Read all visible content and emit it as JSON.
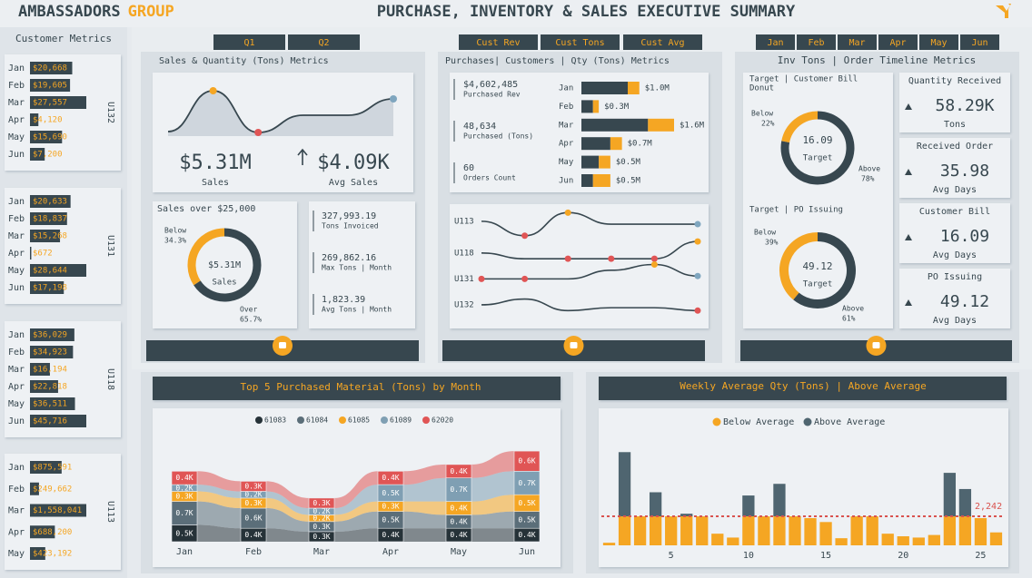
{
  "header": {
    "brand": "AMBASSADORS",
    "brand_accent": "GROUP",
    "title": "PURCHASE, INVENTORY & SALES EXECUTIVE SUMMARY"
  },
  "tabs": {
    "quarters": [
      "Q1",
      "Q2"
    ],
    "customers": [
      "Cust Rev",
      "Cust Tons",
      "Cust Avg"
    ],
    "months": [
      "Jan",
      "Feb",
      "Mar",
      "Apr",
      "May",
      "Jun"
    ]
  },
  "sidebar": {
    "title": "Customer Metrics",
    "groups": [
      {
        "name": "U132",
        "categories": [
          "Jan",
          "Feb",
          "Mar",
          "Apr",
          "May",
          "Jun"
        ],
        "values": [
          20668,
          19605,
          27557,
          4120,
          15690,
          7200
        ],
        "value_labels": [
          "$20,668",
          "$19,605",
          "$27,557",
          "$4,120",
          "$15,690",
          "$7,200"
        ]
      },
      {
        "name": "U131",
        "categories": [
          "Jan",
          "Feb",
          "Mar",
          "Apr",
          "May",
          "Jun"
        ],
        "values": [
          20633,
          18837,
          15268,
          672,
          28644,
          17198
        ],
        "value_labels": [
          "$20,633",
          "$18,837",
          "$15,268",
          "$672",
          "$28,644",
          "$17,198"
        ]
      },
      {
        "name": "U118",
        "categories": [
          "Jan",
          "Feb",
          "Mar",
          "Apr",
          "May",
          "Jun"
        ],
        "values": [
          36029,
          34923,
          16194,
          22818,
          36511,
          45716
        ],
        "value_labels": [
          "$36,029",
          "$34,923",
          "$16,194",
          "$22,818",
          "$36,511",
          "$45,716"
        ]
      },
      {
        "name": "U113",
        "categories": [
          "Jan",
          "Feb",
          "Mar",
          "Apr",
          "May"
        ],
        "values": [
          875591,
          249662,
          1558041,
          688200,
          423192
        ],
        "value_labels": [
          "$875,591",
          "$249,662",
          "$1,558,041",
          "$688,200",
          "$423,192"
        ]
      }
    ]
  },
  "sales_panel": {
    "title": "Sales & Quantity (Tons)  Metrics",
    "trend": {
      "type": "area",
      "values": [
        0.1,
        1.0,
        0.08,
        0.46,
        0.46,
        0.82
      ],
      "ylim": [
        0,
        1
      ],
      "marker_colors": [
        null,
        "#f5a623",
        "#e05555",
        null,
        null,
        "#7fa6bf"
      ]
    },
    "kpis": [
      {
        "value": "$5.31M",
        "label": "Sales"
      },
      {
        "value": "$4.09K",
        "label": "Avg Sales"
      }
    ],
    "donut": {
      "type": "donut",
      "title": "Sales over $25,000",
      "center_value": "$5.31M",
      "center_label": "Sales",
      "categories": [
        "Below",
        "Over"
      ],
      "values": [
        34.3,
        65.7
      ],
      "value_labels": [
        "34.3%",
        "65.7%"
      ],
      "colors": [
        "#f5a623",
        "#37474f"
      ]
    },
    "metrics": [
      {
        "value": "327,993.19",
        "label": "Tons Invoiced"
      },
      {
        "value": "269,862.16",
        "label": "Max Tons | Month"
      },
      {
        "value": "1,823.39",
        "label": "Avg Tons | Month"
      }
    ]
  },
  "purchases_panel": {
    "title": "Purchases| Customers | Qty (Tons)  Metrics",
    "stats": [
      {
        "value": "$4,602,485",
        "label": "Purchased Rev"
      },
      {
        "value": "48,634",
        "label": "Purchased (Tons)"
      },
      {
        "value": "60",
        "label": "Orders Count"
      }
    ],
    "bars": {
      "type": "bar",
      "categories": [
        "Jan",
        "Feb",
        "Mar",
        "Apr",
        "May",
        "Jun"
      ],
      "series": [
        {
          "color": "#37474f",
          "values": [
            0.8,
            0.2,
            1.15,
            0.5,
            0.3,
            0.2
          ]
        },
        {
          "color": "#f5a623",
          "values": [
            0.2,
            0.1,
            0.45,
            0.2,
            0.2,
            0.3
          ]
        }
      ],
      "totals": [
        1.0,
        0.3,
        1.6,
        0.7,
        0.5,
        0.5
      ],
      "value_labels": [
        "$1.0M",
        "$0.3M",
        "$1.6M",
        "$0.7M",
        "$0.5M",
        "$0.5M"
      ],
      "xlim": [
        0,
        1.6
      ]
    },
    "bump": {
      "type": "line",
      "ylim": [
        0.5,
        4.5
      ],
      "series": [
        {
          "name": "U113",
          "values": [
            1.0,
            1.5,
            0.7,
            1.1,
            1.1,
            1.1
          ],
          "marker_colors": [
            null,
            "#e05555",
            "#f5a623",
            null,
            null,
            "#7fa6bf"
          ]
        },
        {
          "name": "U118",
          "values": [
            2.1,
            2.3,
            2.3,
            2.3,
            2.3,
            1.7
          ],
          "marker_colors": [
            null,
            null,
            "#e05555",
            "#e05555",
            "#e05555",
            "#f5a623"
          ]
        },
        {
          "name": "U131",
          "values": [
            3.0,
            3.0,
            3.0,
            2.7,
            2.5,
            2.9
          ],
          "marker_colors": [
            "#e05555",
            "#e05555",
            null,
            null,
            "#f5a623",
            "#7fa6bf"
          ]
        },
        {
          "name": "U132",
          "values": [
            3.9,
            3.7,
            4.1,
            4.0,
            4.0,
            4.1
          ],
          "marker_colors": [
            null,
            null,
            null,
            null,
            null,
            "#e05555"
          ]
        }
      ]
    }
  },
  "inventory_panel": {
    "title": "Inv Tons | Order Timeline Metrics",
    "donuts": [
      {
        "type": "donut",
        "title": "Target | Customer Bill",
        "subtitle": "Donut",
        "center_value": "16.09",
        "center_label": "Target",
        "categories": [
          "Below",
          "Above"
        ],
        "values": [
          22,
          78
        ],
        "value_labels": [
          "22%",
          "78%"
        ],
        "colors": [
          "#f5a623",
          "#37474f"
        ]
      },
      {
        "type": "donut",
        "title": "Target | PO Issuing",
        "center_value": "49.12",
        "center_label": "Target",
        "categories": [
          "Below",
          "Above"
        ],
        "values": [
          39,
          61
        ],
        "value_labels": [
          "39%",
          "61%"
        ],
        "colors": [
          "#f5a623",
          "#37474f"
        ]
      }
    ],
    "kpis": [
      {
        "title": "Quantity Received",
        "value": "58.29K",
        "label": "Tons"
      },
      {
        "title": "Received Order",
        "value": "35.98",
        "label": "Avg Days"
      },
      {
        "title": "Customer Bill",
        "value": "16.09",
        "label": "Avg Days"
      },
      {
        "title": "PO Issuing",
        "value": "49.12",
        "label": "Avg Days"
      }
    ]
  },
  "materials": {
    "type": "ribbon",
    "title": "Top 5  Purchased Material (Tons) by  Month",
    "categories": [
      "Jan",
      "Feb",
      "Mar",
      "Apr",
      "May",
      "Jun"
    ],
    "series": [
      {
        "name": "61083",
        "color": "#263238",
        "values": [
          0.5,
          0.4,
          0.3,
          0.4,
          0.4,
          0.4
        ],
        "value_labels": [
          "0.5K",
          "0.4K",
          "0.3K",
          "0.4K",
          "0.4K",
          "0.4K"
        ]
      },
      {
        "name": "61084",
        "color": "#5b6e79",
        "values": [
          0.7,
          0.6,
          0.3,
          0.5,
          0.4,
          0.5
        ],
        "value_labels": [
          "0.7K",
          "0.6K",
          "0.3K",
          "0.5K",
          "0.4K",
          "0.5K"
        ]
      },
      {
        "name": "61085",
        "color": "#f5a623",
        "values": [
          0.3,
          0.3,
          0.2,
          0.3,
          0.4,
          0.5
        ],
        "value_labels": [
          "0.3K",
          "0.3K",
          "0.2K",
          "0.3K",
          "0.4K",
          "0.5K"
        ]
      },
      {
        "name": "61089",
        "color": "#7f9fb3",
        "values": [
          0.2,
          0.2,
          0.2,
          0.5,
          0.7,
          0.7
        ],
        "value_labels": [
          "0.2K",
          "0.2K",
          "0.2K",
          "0.5K",
          "0.7K",
          "0.7K"
        ]
      },
      {
        "name": "62020",
        "color": "#e05555",
        "values": [
          0.4,
          0.3,
          0.3,
          0.4,
          0.4,
          0.6
        ],
        "value_labels": [
          "0.4K",
          "0.3K",
          "0.3K",
          "0.4K",
          "0.4K",
          "0.6K"
        ]
      }
    ]
  },
  "weekly": {
    "type": "bar",
    "title": "Weekly Average Qty (Tons) | Above Average",
    "x": [
      1,
      2,
      3,
      4,
      5,
      6,
      7,
      8,
      9,
      10,
      11,
      12,
      13,
      14,
      15,
      16,
      17,
      18,
      19,
      20,
      21,
      22,
      23,
      24,
      25,
      26
    ],
    "xlim": [
      0.5,
      26.5
    ],
    "xticks": [
      5,
      10,
      15,
      20,
      25
    ],
    "ylim": [
      0,
      7500
    ],
    "series": [
      {
        "name": "Below Average",
        "color": "#f5a623",
        "values": [
          200,
          2242,
          2242,
          2242,
          2242,
          2242,
          2242,
          900,
          600,
          2242,
          2242,
          2242,
          2242,
          2100,
          1800,
          550,
          2242,
          2242,
          900,
          700,
          600,
          800,
          2242,
          2242,
          2100,
          1000
        ]
      },
      {
        "name": "Above Average",
        "color": "#4f6570",
        "values": [
          0,
          4958,
          0,
          1858,
          0,
          200,
          0,
          0,
          0,
          1608,
          0,
          2508,
          0,
          0,
          0,
          0,
          0,
          0,
          0,
          0,
          0,
          0,
          3358,
          2108,
          0,
          0
        ]
      }
    ],
    "reference": {
      "value": 2242,
      "label": "2,242",
      "color": "#d9534f"
    }
  }
}
